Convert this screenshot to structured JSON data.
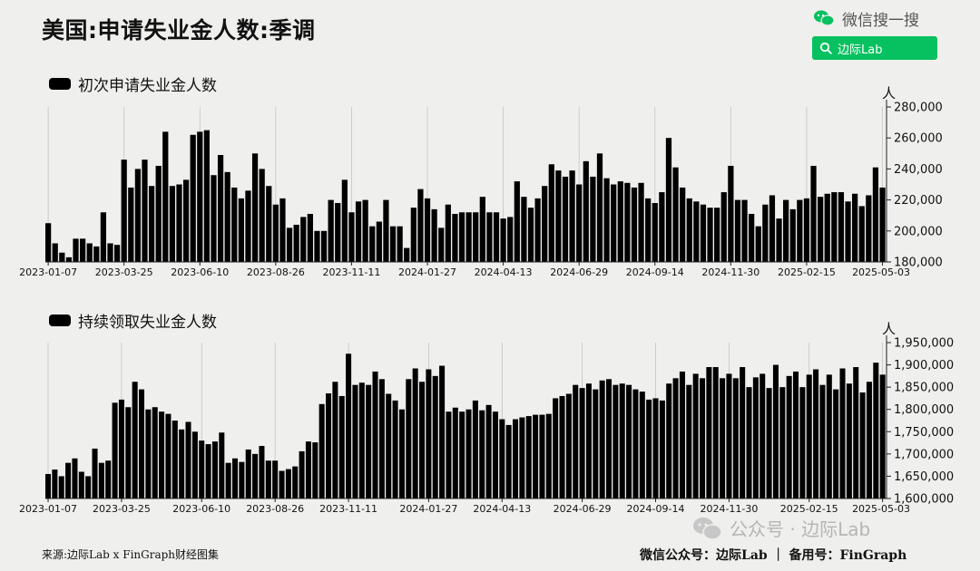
{
  "title": "美国:申请失业金人数:季调",
  "wechat_search": {
    "label": "微信搜一搜",
    "query": "边际Lab"
  },
  "footer": {
    "source": "来源:边际Lab x FinGraph财经图集",
    "right": "微信公众号：边际Lab ｜ 备用号：FinGraph"
  },
  "watermark": "公众号 · 边际Lab",
  "colors": {
    "bar": "#000000",
    "background": "#efefed",
    "accent": "#07c160"
  },
  "chart_data": [
    {
      "type": "bar",
      "title": "初次申请失业金人数",
      "unit": "人",
      "ylim": [
        180000,
        280000
      ],
      "yticks": [
        180000,
        200000,
        220000,
        240000,
        260000,
        280000
      ],
      "ytick_labels": [
        "180,000",
        "200,000",
        "220,000",
        "240,000",
        "260,000",
        "280,000"
      ],
      "xtick_labels": [
        "2023-01-07",
        "2023-03-25",
        "2023-06-10",
        "2023-08-26",
        "2023-11-11",
        "2024-01-27",
        "2024-04-13",
        "2024-06-29",
        "2024-09-14",
        "2024-11-30",
        "2025-02-15",
        "2025-05-03"
      ],
      "series": [
        {
          "values": [
            205000,
            192000,
            186000,
            183000,
            195000,
            195000,
            192000,
            190000,
            212000,
            192000,
            191000,
            246000,
            228000,
            240000,
            246000,
            229000,
            242000,
            264000,
            229000,
            230000,
            233000,
            262000,
            264000,
            265000,
            236000,
            249000,
            238000,
            228000,
            221000,
            226000,
            250000,
            240000,
            229000,
            217000,
            221000,
            202000,
            204000,
            209000,
            211000,
            200000,
            200000,
            220000,
            218000,
            233000,
            212000,
            219000,
            220000,
            203000,
            206000,
            220000,
            203000,
            203000,
            189000,
            215000,
            227000,
            221000,
            214000,
            202000,
            217000,
            211000,
            212000,
            212000,
            212000,
            222000,
            212000,
            212000,
            208000,
            209000,
            232000,
            222000,
            215000,
            221000,
            229000,
            243000,
            239000,
            235000,
            239000,
            230000,
            245000,
            235000,
            250000,
            234000,
            230000,
            232000,
            231000,
            228000,
            231000,
            221000,
            218000,
            225000,
            260000,
            241000,
            228000,
            221000,
            219000,
            217000,
            215000,
            215000,
            225000,
            242000,
            220000,
            220000,
            211000,
            203000,
            217000,
            223000,
            208000,
            220000,
            214000,
            220000,
            221000,
            242000,
            222000,
            224000,
            225000,
            225000,
            219000,
            224000,
            216000,
            223000,
            241000,
            228000
          ]
        }
      ]
    },
    {
      "type": "bar",
      "title": "持续领取失业金人数",
      "unit": "人",
      "ylim": [
        1600000,
        1950000
      ],
      "yticks": [
        1600000,
        1650000,
        1700000,
        1750000,
        1800000,
        1850000,
        1900000,
        1950000
      ],
      "ytick_labels": [
        "1,600,000",
        "1,650,000",
        "1,700,000",
        "1,750,000",
        "1,800,000",
        "1,850,000",
        "1,900,000",
        "1,950,000"
      ],
      "xtick_labels": [
        "2023-01-07",
        "2023-03-25",
        "2023-06-10",
        "2023-08-26",
        "2023-11-11",
        "2024-01-27",
        "2024-04-13",
        "2024-06-29",
        "2024-09-14",
        "2024-11-30",
        "2025-02-15",
        "2025-05-03"
      ],
      "series": [
        {
          "values": [
            1655000,
            1665000,
            1650000,
            1680000,
            1690000,
            1660000,
            1650000,
            1712000,
            1680000,
            1685000,
            1815000,
            1822000,
            1805000,
            1862000,
            1845000,
            1800000,
            1805000,
            1795000,
            1790000,
            1775000,
            1755000,
            1772000,
            1750000,
            1730000,
            1722000,
            1728000,
            1748000,
            1680000,
            1690000,
            1682000,
            1710000,
            1700000,
            1718000,
            1685000,
            1685000,
            1662000,
            1666000,
            1672000,
            1706000,
            1728000,
            1726000,
            1812000,
            1836000,
            1862000,
            1830000,
            1925000,
            1855000,
            1860000,
            1855000,
            1885000,
            1868000,
            1835000,
            1820000,
            1800000,
            1868000,
            1892000,
            1862000,
            1890000,
            1875000,
            1898000,
            1795000,
            1804000,
            1795000,
            1800000,
            1820000,
            1798000,
            1810000,
            1795000,
            1778000,
            1765000,
            1778000,
            1782000,
            1785000,
            1788000,
            1788000,
            1790000,
            1825000,
            1830000,
            1835000,
            1855000,
            1848000,
            1858000,
            1845000,
            1865000,
            1868000,
            1855000,
            1858000,
            1855000,
            1845000,
            1840000,
            1822000,
            1825000,
            1820000,
            1858000,
            1870000,
            1885000,
            1855000,
            1880000,
            1870000,
            1895000,
            1895000,
            1870000,
            1880000,
            1870000,
            1895000,
            1850000,
            1872000,
            1880000,
            1848000,
            1900000,
            1850000,
            1875000,
            1885000,
            1850000,
            1878000,
            1890000,
            1855000,
            1878000,
            1845000,
            1892000,
            1858000,
            1895000,
            1838000,
            1862000,
            1905000,
            1878000
          ]
        }
      ]
    }
  ]
}
